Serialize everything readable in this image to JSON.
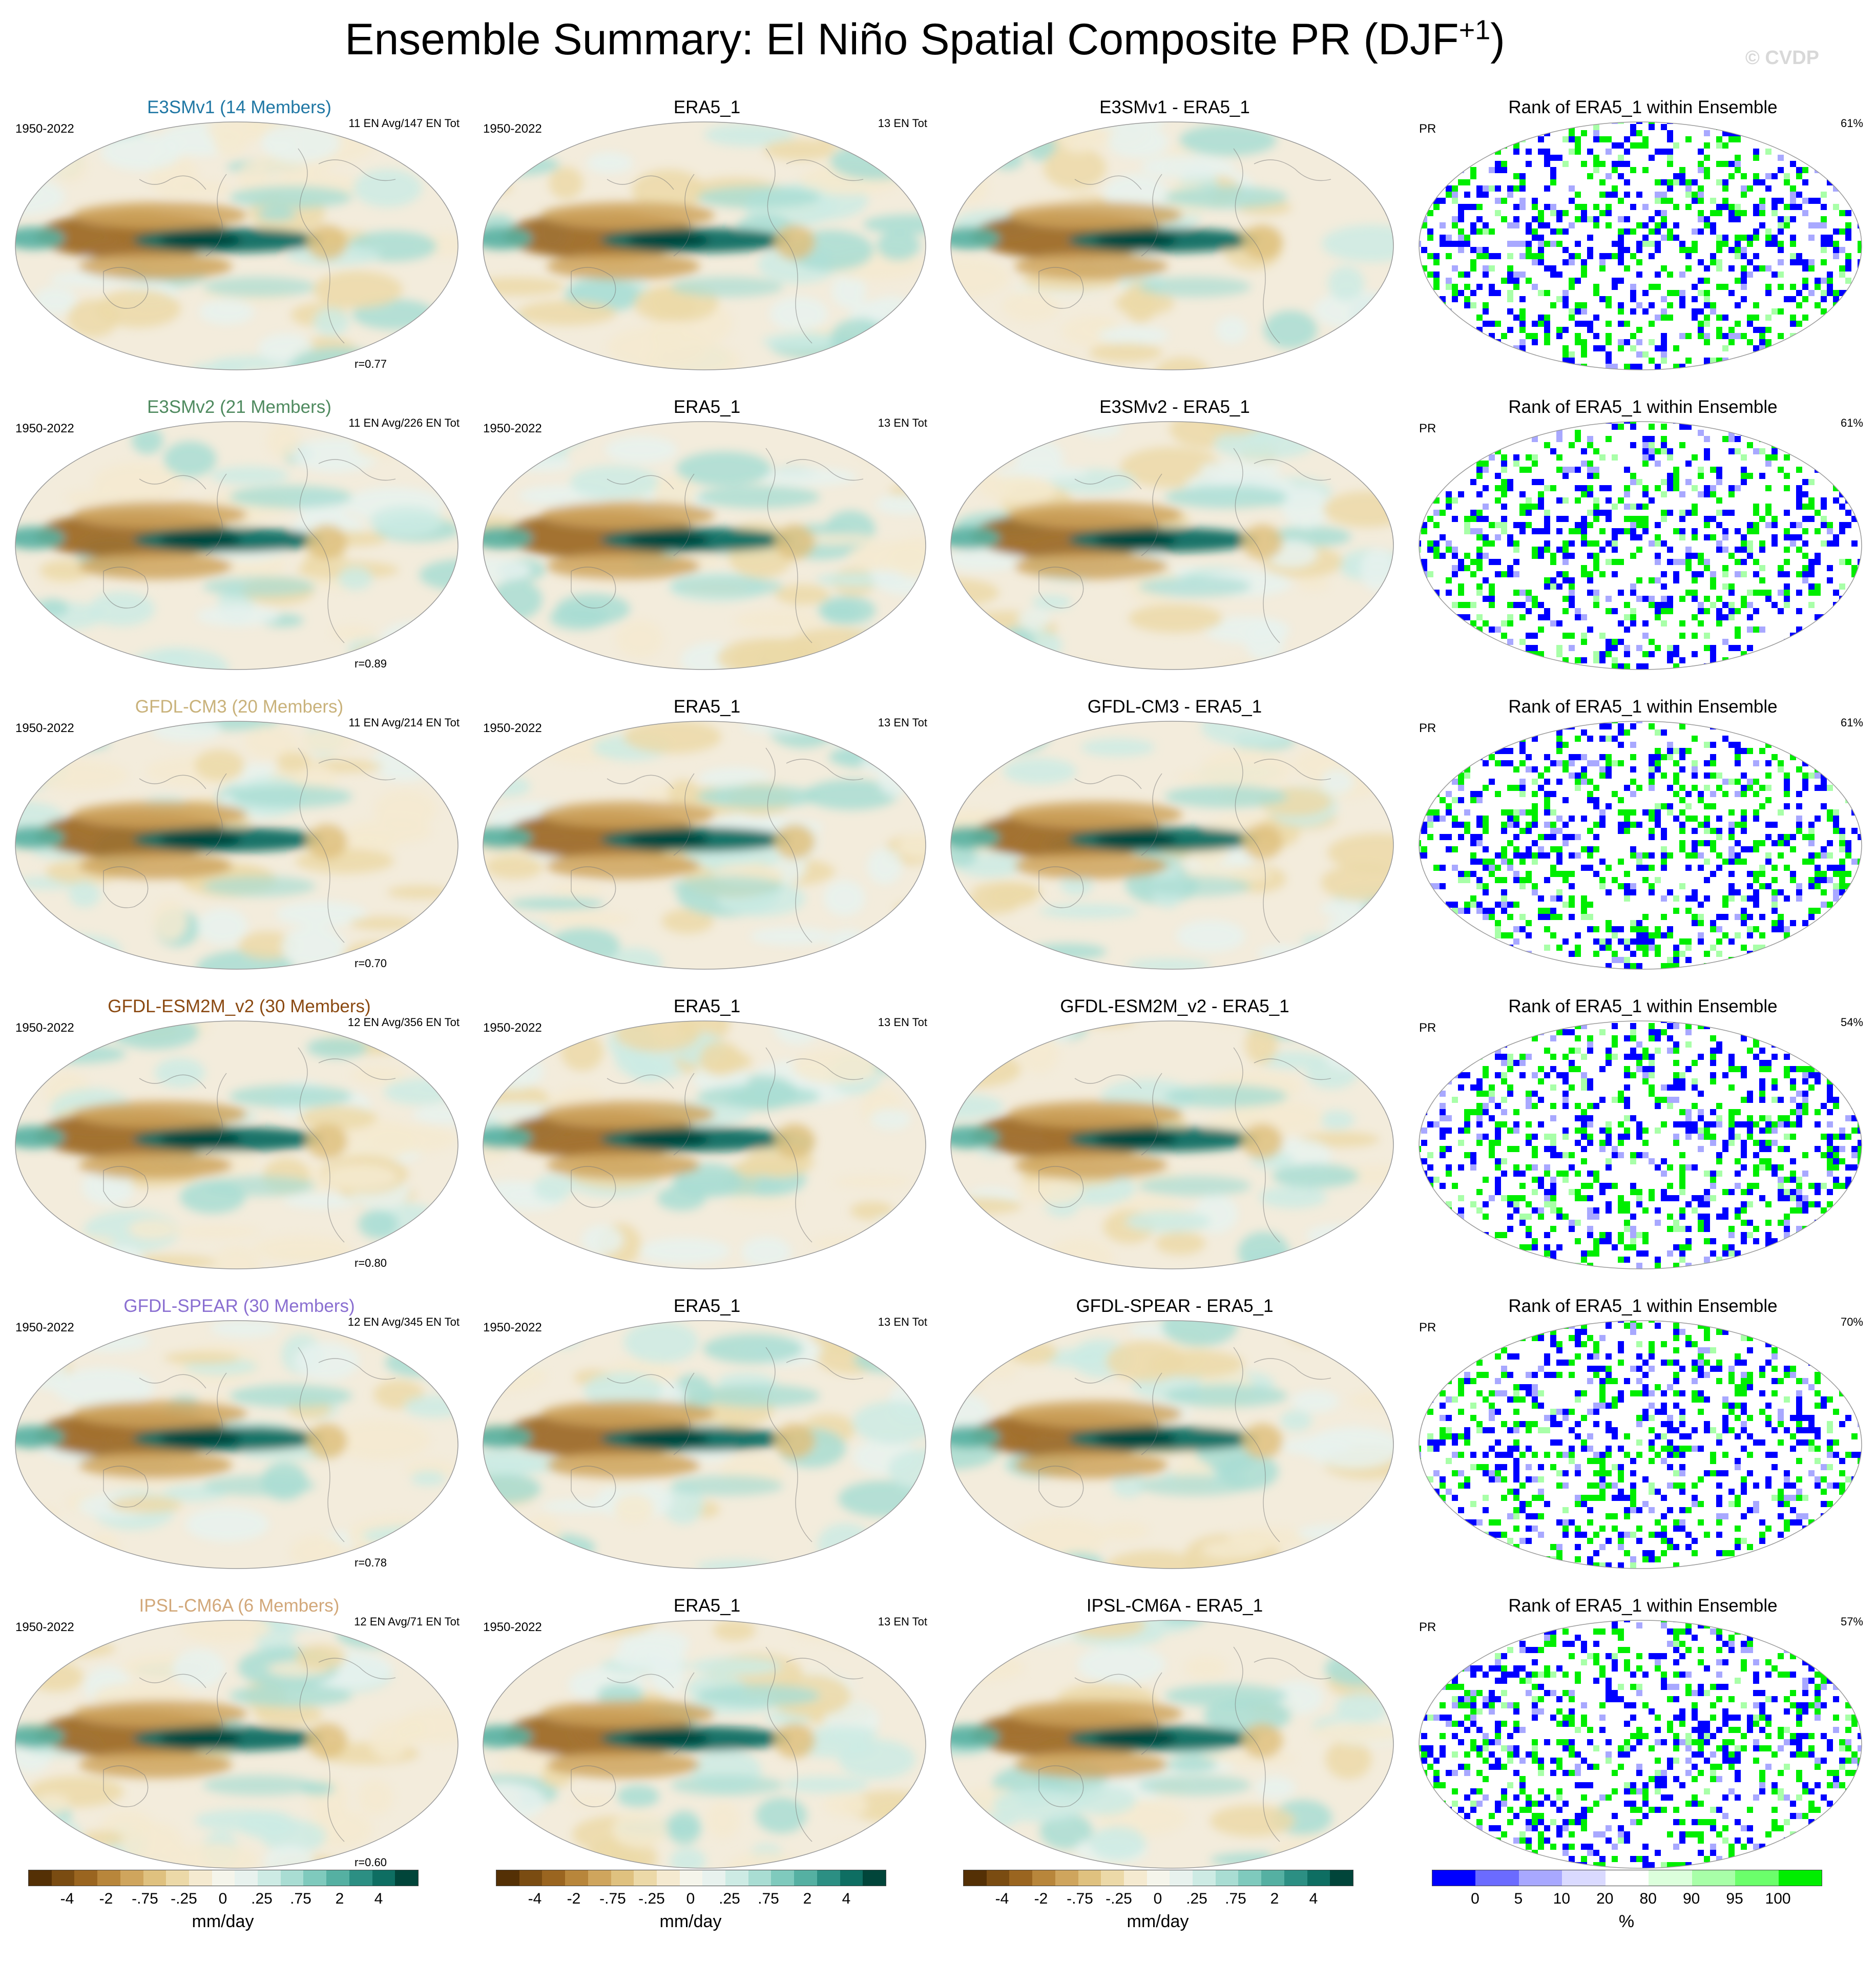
{
  "title_main": "Ensemble Summary: El Niño Spatial Composite PR (DJF",
  "title_sup": "+1",
  "title_close": ")",
  "watermark": "© CVDP",
  "colors": {
    "brown_green_scale": [
      "#543005",
      "#7a4c12",
      "#9a6520",
      "#b8863b",
      "#cfa55d",
      "#dfc17f",
      "#ecd9a8",
      "#f5ead0",
      "#f5f5eb",
      "#e8f2ee",
      "#cdebe4",
      "#a9ddd3",
      "#7fcabd",
      "#55b0a2",
      "#2c8f83",
      "#0e6e62",
      "#01453a"
    ],
    "rank_scale": [
      "#0000ff",
      "#6b6bff",
      "#a8a8ff",
      "#dadaff",
      "#ffffff",
      "#dcffdc",
      "#a8ffa8",
      "#6bff6b",
      "#00ee00"
    ],
    "model_title_colors": {
      "E3SMv1": "#1f77a4",
      "E3SMv2": "#4f8a5f",
      "GFDL-CM3": "#c9b27b",
      "GFDL-ESM2M_v2": "#8b4a12",
      "GFDL-SPEAR": "#8a6fd1",
      "IPSL-CM6A": "#d2a87a"
    }
  },
  "rows": [
    {
      "model": "E3SMv1",
      "model_title": "E3SMv1 (14 Members)",
      "period": "1950-2022",
      "stat": "11 EN Avg/147 EN Tot",
      "corr": "r=0.77",
      "obs_title": "ERA5_1",
      "obs_period": "1950-2022",
      "obs_stat": "13 EN Tot",
      "diff_title": "E3SMv1 - ERA5_1",
      "rank_title": "Rank of ERA5_1 within Ensemble",
      "rank_var": "PR",
      "rank_pct": "61%"
    },
    {
      "model": "E3SMv2",
      "model_title": "E3SMv2 (21 Members)",
      "period": "1950-2022",
      "stat": "11 EN Avg/226 EN Tot",
      "corr": "r=0.89",
      "obs_title": "ERA5_1",
      "obs_period": "1950-2022",
      "obs_stat": "13 EN Tot",
      "diff_title": "E3SMv2 - ERA5_1",
      "rank_title": "Rank of ERA5_1 within Ensemble",
      "rank_var": "PR",
      "rank_pct": "61%"
    },
    {
      "model": "GFDL-CM3",
      "model_title": "GFDL-CM3 (20 Members)",
      "period": "1950-2022",
      "stat": "11 EN Avg/214 EN Tot",
      "corr": "r=0.70",
      "obs_title": "ERA5_1",
      "obs_period": "1950-2022",
      "obs_stat": "13 EN Tot",
      "diff_title": "GFDL-CM3 - ERA5_1",
      "rank_title": "Rank of ERA5_1 within Ensemble",
      "rank_var": "PR",
      "rank_pct": "61%"
    },
    {
      "model": "GFDL-ESM2M_v2",
      "model_title": "GFDL-ESM2M_v2 (30 Members)",
      "period": "1950-2022",
      "stat": "12 EN Avg/356 EN Tot",
      "corr": "r=0.80",
      "obs_title": "ERA5_1",
      "obs_period": "1950-2022",
      "obs_stat": "13 EN Tot",
      "diff_title": "GFDL-ESM2M_v2 - ERA5_1",
      "rank_title": "Rank of ERA5_1 within Ensemble",
      "rank_var": "PR",
      "rank_pct": "54%"
    },
    {
      "model": "GFDL-SPEAR",
      "model_title": "GFDL-SPEAR (30 Members)",
      "period": "1950-2022",
      "stat": "12 EN Avg/345 EN Tot",
      "corr": "r=0.78",
      "obs_title": "ERA5_1",
      "obs_period": "1950-2022",
      "obs_stat": "13 EN Tot",
      "diff_title": "GFDL-SPEAR - ERA5_1",
      "rank_title": "Rank of ERA5_1 within Ensemble",
      "rank_var": "PR",
      "rank_pct": "70%"
    },
    {
      "model": "IPSL-CM6A",
      "model_title": "IPSL-CM6A (6 Members)",
      "period": "1950-2022",
      "stat": "12 EN Avg/71 EN Tot",
      "corr": "r=0.60",
      "obs_title": "ERA5_1",
      "obs_period": "1950-2022",
      "obs_stat": "13 EN Tot",
      "diff_title": "IPSL-CM6A - ERA5_1",
      "rank_title": "Rank of ERA5_1 within Ensemble",
      "rank_var": "PR",
      "rank_pct": "57%"
    }
  ],
  "colorbars": [
    {
      "ticks": [
        "-4",
        "-2",
        "-.75",
        "-.25",
        "0",
        ".25",
        ".75",
        "2",
        "4"
      ],
      "units": "mm/day",
      "scale": "brown_green_scale"
    },
    {
      "ticks": [
        "-4",
        "-2",
        "-.75",
        "-.25",
        "0",
        ".25",
        ".75",
        "2",
        "4"
      ],
      "units": "mm/day",
      "scale": "brown_green_scale"
    },
    {
      "ticks": [
        "-4",
        "-2",
        "-.75",
        "-.25",
        "0",
        ".25",
        ".75",
        "2",
        "4"
      ],
      "units": "mm/day",
      "scale": "brown_green_scale"
    },
    {
      "ticks": [
        "0",
        "5",
        "10",
        "20",
        "80",
        "90",
        "95",
        "100"
      ],
      "units": "%",
      "scale": "rank_scale"
    }
  ]
}
